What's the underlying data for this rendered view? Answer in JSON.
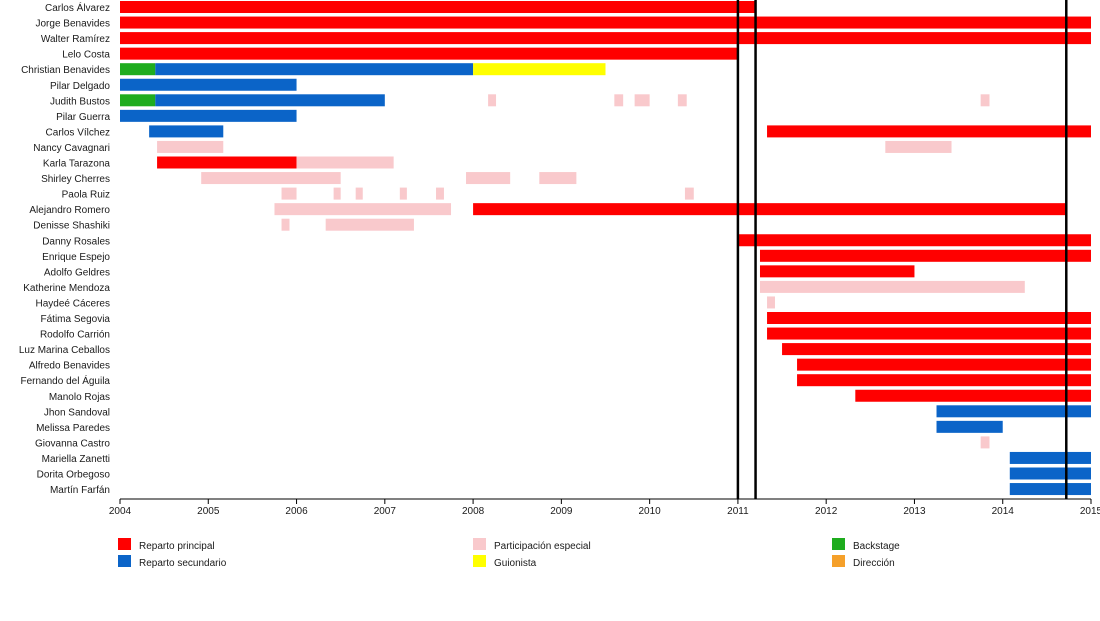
{
  "chart_data": {
    "type": "timeline",
    "title": "",
    "xlabel": "",
    "ylabel": "",
    "x_range": [
      2004,
      2015
    ],
    "x_ticks": [
      "2004",
      "2005",
      "2006",
      "2007",
      "2008",
      "2009",
      "2010",
      "2011",
      "2012",
      "2013",
      "2014",
      "2015"
    ],
    "grid": false,
    "legend_position": "bottom",
    "categories": [
      {
        "key": "principal",
        "label": "Reparto principal",
        "color": "#ff0000"
      },
      {
        "key": "secundario",
        "label": "Reparto secundario",
        "color": "#0b64c8"
      },
      {
        "key": "especial",
        "label": "Participación especial",
        "color": "#f9c9cc"
      },
      {
        "key": "guionista",
        "label": "Guionista",
        "color": "#ffff00"
      },
      {
        "key": "backstage",
        "label": "Backstage",
        "color": "#1eac1e"
      },
      {
        "key": "direccion",
        "label": "Dirección",
        "color": "#f5a02a"
      }
    ],
    "vertical_lines": [
      2011.0,
      2011.2,
      2014.72
    ],
    "rows": [
      {
        "name": "Carlos Álvarez",
        "bars": [
          {
            "start": 2004.0,
            "end": 2011.2,
            "role": "principal"
          }
        ]
      },
      {
        "name": "Jorge Benavides",
        "bars": [
          {
            "start": 2004.0,
            "end": 2015.0,
            "role": "principal"
          }
        ]
      },
      {
        "name": "Walter Ramírez",
        "bars": [
          {
            "start": 2004.0,
            "end": 2015.0,
            "role": "principal"
          }
        ]
      },
      {
        "name": "Lelo Costa",
        "bars": [
          {
            "start": 2004.0,
            "end": 2011.0,
            "role": "principal"
          }
        ]
      },
      {
        "name": "Christian Benavides",
        "bars": [
          {
            "start": 2004.0,
            "end": 2004.4,
            "role": "backstage"
          },
          {
            "start": 2004.4,
            "end": 2008.0,
            "role": "secundario"
          },
          {
            "start": 2008.0,
            "end": 2009.5,
            "role": "guionista"
          }
        ]
      },
      {
        "name": "Pilar Delgado",
        "bars": [
          {
            "start": 2004.0,
            "end": 2006.0,
            "role": "secundario"
          }
        ]
      },
      {
        "name": "Judith Bustos",
        "bars": [
          {
            "start": 2004.0,
            "end": 2004.4,
            "role": "backstage"
          },
          {
            "start": 2004.4,
            "end": 2007.0,
            "role": "secundario"
          },
          {
            "start": 2008.17,
            "end": 2008.26,
            "role": "especial"
          },
          {
            "start": 2009.6,
            "end": 2009.7,
            "role": "especial"
          },
          {
            "start": 2009.83,
            "end": 2010.0,
            "role": "especial"
          },
          {
            "start": 2010.32,
            "end": 2010.42,
            "role": "especial"
          },
          {
            "start": 2013.75,
            "end": 2013.85,
            "role": "especial"
          }
        ]
      },
      {
        "name": "Pilar Guerra",
        "bars": [
          {
            "start": 2004.0,
            "end": 2006.0,
            "role": "secundario"
          }
        ]
      },
      {
        "name": "Carlos Vílchez",
        "bars": [
          {
            "start": 2004.33,
            "end": 2005.17,
            "role": "secundario"
          },
          {
            "start": 2011.33,
            "end": 2015.0,
            "role": "principal"
          }
        ]
      },
      {
        "name": "Nancy Cavagnari",
        "bars": [
          {
            "start": 2004.42,
            "end": 2005.17,
            "role": "especial"
          },
          {
            "start": 2012.67,
            "end": 2013.42,
            "role": "especial"
          }
        ]
      },
      {
        "name": "Karla Tarazona",
        "bars": [
          {
            "start": 2004.42,
            "end": 2006.0,
            "role": "principal"
          },
          {
            "start": 2006.0,
            "end": 2007.1,
            "role": "especial"
          }
        ]
      },
      {
        "name": "Shirley Cherres",
        "bars": [
          {
            "start": 2004.92,
            "end": 2006.5,
            "role": "especial"
          },
          {
            "start": 2007.92,
            "end": 2008.42,
            "role": "especial"
          },
          {
            "start": 2008.75,
            "end": 2009.17,
            "role": "especial"
          }
        ]
      },
      {
        "name": "Paola Ruiz",
        "bars": [
          {
            "start": 2005.83,
            "end": 2006.0,
            "role": "especial"
          },
          {
            "start": 2006.42,
            "end": 2006.5,
            "role": "especial"
          },
          {
            "start": 2006.67,
            "end": 2006.75,
            "role": "especial"
          },
          {
            "start": 2007.17,
            "end": 2007.25,
            "role": "especial"
          },
          {
            "start": 2007.58,
            "end": 2007.67,
            "role": "especial"
          },
          {
            "start": 2010.4,
            "end": 2010.5,
            "role": "especial"
          }
        ]
      },
      {
        "name": "Alejandro Romero",
        "bars": [
          {
            "start": 2005.75,
            "end": 2007.75,
            "role": "especial"
          },
          {
            "start": 2008.0,
            "end": 2014.72,
            "role": "principal"
          }
        ]
      },
      {
        "name": "Denisse Shashiki",
        "bars": [
          {
            "start": 2005.83,
            "end": 2005.92,
            "role": "especial"
          },
          {
            "start": 2006.33,
            "end": 2007.33,
            "role": "especial"
          }
        ]
      },
      {
        "name": "Danny Rosales",
        "bars": [
          {
            "start": 2011.0,
            "end": 2015.0,
            "role": "principal"
          }
        ]
      },
      {
        "name": "Enrique Espejo",
        "bars": [
          {
            "start": 2011.25,
            "end": 2015.0,
            "role": "principal"
          }
        ]
      },
      {
        "name": "Adolfo Geldres",
        "bars": [
          {
            "start": 2011.25,
            "end": 2013.0,
            "role": "principal"
          }
        ]
      },
      {
        "name": "Katherine Mendoza",
        "bars": [
          {
            "start": 2011.25,
            "end": 2014.25,
            "role": "especial"
          }
        ]
      },
      {
        "name": "Haydeé Cáceres",
        "bars": [
          {
            "start": 2011.33,
            "end": 2011.42,
            "role": "especial"
          }
        ]
      },
      {
        "name": "Fátima Segovia",
        "bars": [
          {
            "start": 2011.33,
            "end": 2015.0,
            "role": "principal"
          }
        ]
      },
      {
        "name": "Rodolfo Carrión",
        "bars": [
          {
            "start": 2011.33,
            "end": 2015.0,
            "role": "principal"
          }
        ]
      },
      {
        "name": "Luz Marina Ceballos",
        "bars": [
          {
            "start": 2011.5,
            "end": 2015.0,
            "role": "principal"
          }
        ]
      },
      {
        "name": "Alfredo Benavides",
        "bars": [
          {
            "start": 2011.67,
            "end": 2015.0,
            "role": "principal"
          }
        ]
      },
      {
        "name": "Fernando del Águila",
        "bars": [
          {
            "start": 2011.67,
            "end": 2015.0,
            "role": "principal"
          }
        ]
      },
      {
        "name": "Manolo Rojas",
        "bars": [
          {
            "start": 2012.33,
            "end": 2015.0,
            "role": "principal"
          }
        ]
      },
      {
        "name": "Jhon Sandoval",
        "bars": [
          {
            "start": 2013.25,
            "end": 2015.0,
            "role": "secundario"
          }
        ]
      },
      {
        "name": "Melissa Paredes",
        "bars": [
          {
            "start": 2013.25,
            "end": 2014.0,
            "role": "secundario"
          }
        ]
      },
      {
        "name": "Giovanna Castro",
        "bars": [
          {
            "start": 2013.75,
            "end": 2013.85,
            "role": "especial"
          }
        ]
      },
      {
        "name": "Mariella Zanetti",
        "bars": [
          {
            "start": 2014.08,
            "end": 2015.0,
            "role": "secundario"
          }
        ]
      },
      {
        "name": "Dorita Orbegoso",
        "bars": [
          {
            "start": 2014.08,
            "end": 2015.0,
            "role": "secundario"
          }
        ]
      },
      {
        "name": "Martín Farfán",
        "bars": [
          {
            "start": 2014.08,
            "end": 2015.0,
            "role": "secundario"
          }
        ]
      }
    ]
  }
}
